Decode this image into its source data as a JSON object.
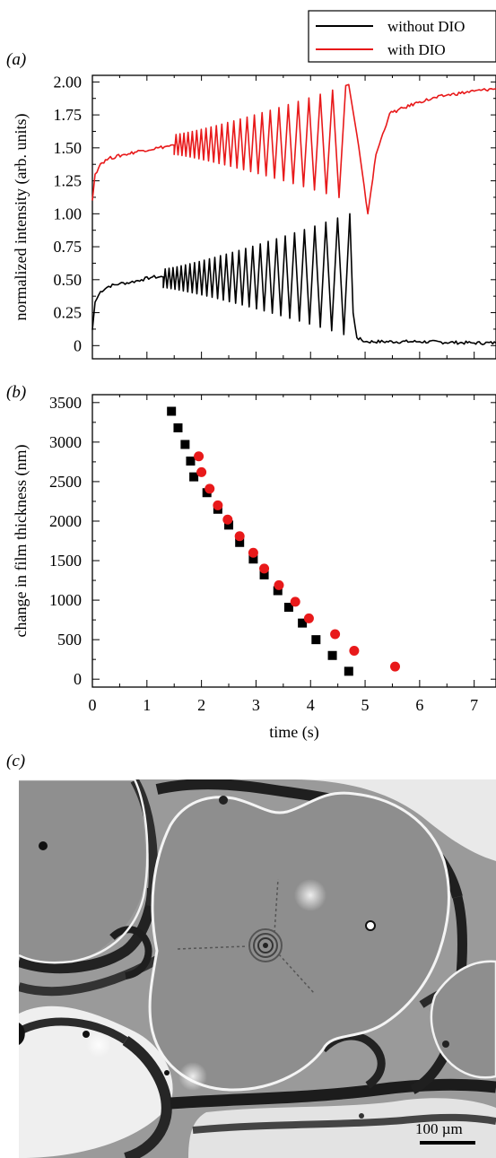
{
  "colors": {
    "without_dio": "#000000",
    "with_dio": "#e8191a",
    "axis": "#000000"
  },
  "panel_labels": {
    "a": "(a)",
    "b": "(b)",
    "c": "(c)"
  },
  "legend": {
    "without": "without DIO",
    "with": "with DIO",
    "placement": "top-right"
  },
  "scale_bar": {
    "label": "100 µm"
  },
  "chart_data": [
    {
      "type": "line",
      "panel": "(a)",
      "ylabel": "normalized intensity (arb. units)",
      "xlabel": "",
      "xlim": [
        0,
        7.4
      ],
      "ylim": [
        -0.1,
        2.05
      ],
      "y_ticks": [
        0,
        0.25,
        0.5,
        0.75,
        1.0,
        1.25,
        1.5,
        1.75,
        2.0
      ],
      "y_tick_labels": [
        "0",
        "0.25",
        "0.50",
        "0.75",
        "1.00",
        "1.25",
        "1.50",
        "1.75",
        "2.00"
      ],
      "x_ticks": [
        0,
        1,
        2,
        3,
        4,
        5,
        6,
        7
      ],
      "x_tick_labels_shown": false,
      "grid": false,
      "series": [
        {
          "name": "without DIO",
          "color": "#000000",
          "description": "noisy plateau then oscillations with growing amplitude, sharp drop to near 0 after t≈4.7 s",
          "x": [
            0.0,
            0.05,
            0.15,
            0.3,
            0.5,
            0.7,
            0.9,
            1.1,
            1.3,
            4.72,
            4.78,
            4.85,
            5.0,
            6.0,
            7.0,
            7.4
          ],
          "y": [
            0.12,
            0.33,
            0.41,
            0.45,
            0.47,
            0.48,
            0.5,
            0.52,
            0.52,
            0.55,
            0.25,
            0.06,
            0.03,
            0.03,
            0.02,
            0.02
          ],
          "oscillation": {
            "t_start": 1.3,
            "t_end": 4.72,
            "period_start": 0.07,
            "period_end": 0.24,
            "max_start": 0.58,
            "max_end": 1.0,
            "min_start": 0.44,
            "min_end": 0.07
          }
        },
        {
          "name": "with DIO",
          "color": "#e8191a",
          "description": "plateau near 1.4–1.5, oscillations with growing amplitude, minimum ≈1.0 at t≈5.05 s then recovery to ≈1.95",
          "x": [
            0.0,
            0.05,
            0.15,
            0.3,
            0.6,
            0.9,
            1.2,
            1.5,
            4.7,
            4.85,
            5.05,
            5.2,
            5.45,
            6.0,
            6.5,
            7.0,
            7.4
          ],
          "y": [
            1.1,
            1.3,
            1.38,
            1.42,
            1.45,
            1.48,
            1.5,
            1.52,
            1.94,
            1.6,
            1.0,
            1.45,
            1.76,
            1.85,
            1.9,
            1.93,
            1.95
          ],
          "oscillation": {
            "t_start": 1.5,
            "t_end": 4.7,
            "period_start": 0.07,
            "period_end": 0.26,
            "max_start": 1.6,
            "max_end": 1.98,
            "min_start": 1.45,
            "min_end": 1.1
          }
        }
      ]
    },
    {
      "type": "scatter",
      "panel": "(b)",
      "xlabel": "time (s)",
      "ylabel": "change in film thickness (nm)",
      "xlim": [
        0,
        7.4
      ],
      "ylim": [
        -100,
        3600
      ],
      "x_ticks": [
        0,
        1,
        2,
        3,
        4,
        5,
        6,
        7
      ],
      "y_ticks": [
        0,
        500,
        1000,
        1500,
        2000,
        2500,
        3000,
        3500
      ],
      "grid": false,
      "series": [
        {
          "name": "without DIO",
          "marker": "square",
          "color": "#000000",
          "x": [
            1.45,
            1.57,
            1.7,
            1.8,
            1.86,
            2.1,
            2.3,
            2.5,
            2.7,
            2.95,
            3.15,
            3.4,
            3.6,
            3.85,
            4.1,
            4.4,
            4.7
          ],
          "y": [
            3390,
            3180,
            2970,
            2760,
            2560,
            2360,
            2150,
            1950,
            1730,
            1520,
            1320,
            1120,
            910,
            710,
            500,
            300,
            100
          ]
        },
        {
          "name": "with DIO",
          "marker": "circle",
          "color": "#e8191a",
          "x": [
            1.95,
            2.0,
            2.15,
            2.3,
            2.48,
            2.7,
            2.95,
            3.15,
            3.42,
            3.72,
            3.97,
            4.45,
            4.8,
            5.55
          ],
          "y": [
            2820,
            2620,
            2410,
            2200,
            2020,
            1810,
            1600,
            1400,
            1190,
            980,
            770,
            570,
            360,
            160
          ]
        }
      ]
    }
  ]
}
